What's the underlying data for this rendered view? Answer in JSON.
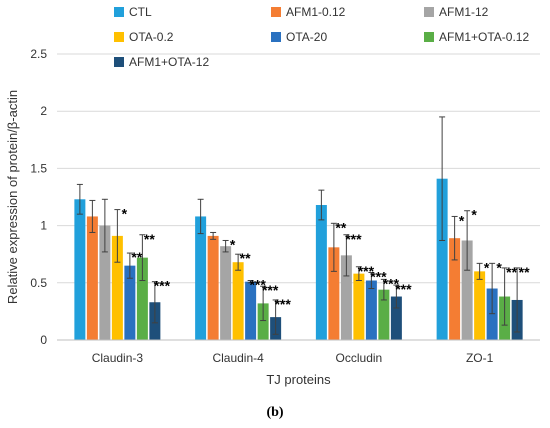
{
  "chart_data": {
    "type": "bar",
    "categories": [
      "Claudin-3",
      "Claudin-4",
      "Occludin",
      "ZO-1"
    ],
    "xlabel": "TJ proteins",
    "ylabel": "Relative expression of protein/β-actin",
    "ylim": [
      0,
      2.5
    ],
    "yticks": [
      "0",
      "0.5",
      "1",
      "1.5",
      "2",
      "2.5"
    ],
    "legend_position": "top",
    "panel_label": "(b)",
    "series": [
      {
        "name": "CTL",
        "color": "#21a0db",
        "values": [
          1.23,
          1.08,
          1.18,
          1.41
        ],
        "errors": [
          0.13,
          0.15,
          0.13,
          0.54
        ],
        "significance": [
          "",
          "",
          "",
          ""
        ]
      },
      {
        "name": "AFM1-0.12",
        "color": "#f47d33",
        "values": [
          1.08,
          0.91,
          0.81,
          0.89
        ],
        "errors": [
          0.14,
          0.03,
          0.21,
          0.19
        ],
        "significance": [
          "",
          "",
          "**",
          "*"
        ]
      },
      {
        "name": "AFM1-12",
        "color": "#a5a5a5",
        "values": [
          1.0,
          0.82,
          0.74,
          0.87
        ],
        "errors": [
          0.23,
          0.05,
          0.18,
          0.26
        ],
        "significance": [
          "",
          "*",
          "***",
          "*"
        ]
      },
      {
        "name": "OTA-0.2",
        "color": "#ffc000",
        "values": [
          0.91,
          0.68,
          0.58,
          0.6
        ],
        "errors": [
          0.23,
          0.07,
          0.06,
          0.07
        ],
        "significance": [
          "*",
          "**",
          "***",
          "*"
        ]
      },
      {
        "name": "OTA-20",
        "color": "#2a71c0",
        "values": [
          0.65,
          0.51,
          0.52,
          0.45
        ],
        "errors": [
          0.11,
          0.01,
          0.07,
          0.22
        ],
        "significance": [
          "**",
          "***",
          "***",
          "*"
        ]
      },
      {
        "name": "AFM1+OTA-0.12",
        "color": "#5aae46",
        "values": [
          0.72,
          0.32,
          0.44,
          0.38
        ],
        "errors": [
          0.2,
          0.15,
          0.09,
          0.25
        ],
        "significance": [
          "**",
          "***",
          "***",
          "**"
        ]
      },
      {
        "name": "AFM1+OTA-12",
        "color": "#1e4f7a",
        "values": [
          0.33,
          0.2,
          0.38,
          0.35
        ],
        "errors": [
          0.18,
          0.15,
          0.1,
          0.28
        ],
        "significance": [
          "***",
          "***",
          "***",
          "**"
        ]
      }
    ]
  }
}
